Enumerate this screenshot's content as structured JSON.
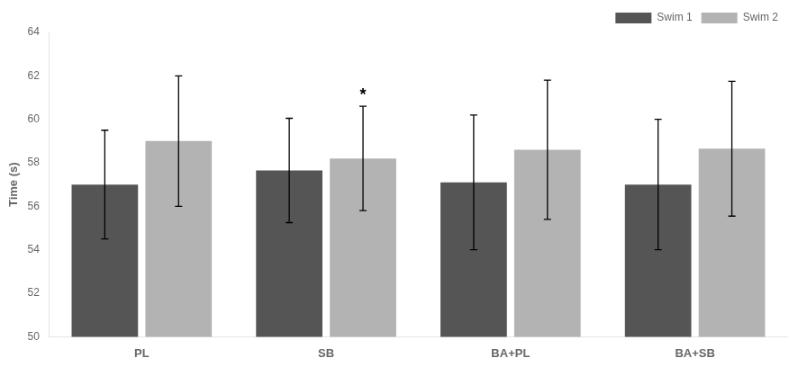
{
  "chart_data": {
    "type": "bar",
    "categories": [
      "PL",
      "SB",
      "BA+PL",
      "BA+SB"
    ],
    "series": [
      {
        "name": "Swim 1",
        "color": "#555555",
        "values": [
          57.0,
          57.65,
          57.1,
          57.0
        ],
        "errors": [
          2.5,
          2.4,
          3.1,
          3.0
        ]
      },
      {
        "name": "Swim 2",
        "color": "#b3b3b3",
        "values": [
          59.0,
          58.2,
          58.6,
          58.65
        ],
        "errors": [
          3.0,
          2.4,
          3.2,
          3.1
        ]
      }
    ],
    "ylabel": "Time (s)",
    "ylim": [
      50,
      64
    ],
    "yticks": [
      50,
      52,
      54,
      56,
      58,
      60,
      62,
      64
    ],
    "grid": false,
    "legend": "upper right",
    "annotations": [
      {
        "text": "*",
        "category": "SB",
        "series": "Swim 2"
      }
    ]
  }
}
